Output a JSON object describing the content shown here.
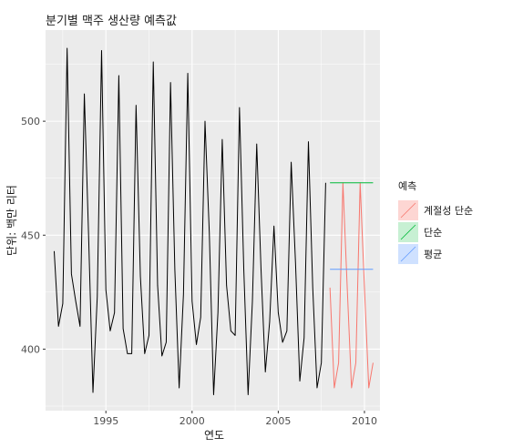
{
  "chart_data": {
    "type": "line",
    "title": "분기별 맥주 생산량 예측값",
    "xlabel": "연도",
    "ylabel": "단위: 백만 리터",
    "xlim": [
      1991.5,
      2010.9
    ],
    "ylim": [
      373,
      540
    ],
    "x_ticks": [
      1995,
      2000,
      2005,
      2010
    ],
    "x_tick_labels": [
      "1995",
      "2000",
      "2005",
      "2010"
    ],
    "y_ticks": [
      400,
      450,
      500
    ],
    "y_tick_labels": [
      "400",
      "450",
      "500"
    ],
    "grid": true,
    "legend": {
      "title": "예측",
      "position": "right",
      "entries": [
        {
          "label": "계절성 단순",
          "color": "#F8766D"
        },
        {
          "label": "단순",
          "color": "#00BA38"
        },
        {
          "label": "평균",
          "color": "#619CFF"
        }
      ]
    },
    "series": [
      {
        "kind": "observed",
        "color": "#000000",
        "x": [
          1992.0,
          1992.25,
          1992.5,
          1992.75,
          1993.0,
          1993.25,
          1993.5,
          1993.75,
          1994.0,
          1994.25,
          1994.5,
          1994.75,
          1995.0,
          1995.25,
          1995.5,
          1995.75,
          1996.0,
          1996.25,
          1996.5,
          1996.75,
          1997.0,
          1997.25,
          1997.5,
          1997.75,
          1998.0,
          1998.25,
          1998.5,
          1998.75,
          1999.0,
          1999.25,
          1999.5,
          1999.75,
          2000.0,
          2000.25,
          2000.5,
          2000.75,
          2001.0,
          2001.25,
          2001.5,
          2001.75,
          2002.0,
          2002.25,
          2002.5,
          2002.75,
          2003.0,
          2003.25,
          2003.5,
          2003.75,
          2004.0,
          2004.25,
          2004.5,
          2004.75,
          2005.0,
          2005.25,
          2005.5,
          2005.75,
          2006.0,
          2006.25,
          2006.5,
          2006.75,
          2007.0,
          2007.25,
          2007.5,
          2007.75
        ],
        "y": [
          443,
          410,
          420,
          532,
          433,
          421,
          410,
          512,
          449,
          381,
          423,
          531,
          426,
          408,
          416,
          520,
          409,
          398,
          398,
          507,
          432,
          398,
          406,
          526,
          428,
          397,
          403,
          517,
          435,
          383,
          424,
          521,
          421,
          402,
          414,
          500,
          451,
          380,
          416,
          492,
          428,
          408,
          406,
          506,
          435,
          380,
          421,
          490,
          435,
          390,
          412,
          454,
          416,
          403,
          408,
          482,
          438,
          386,
          405,
          491,
          427,
          383,
          394,
          473
        ]
      },
      {
        "kind": "forecast",
        "name": "계절성 단순",
        "color": "#F8766D",
        "x": [
          2008.0,
          2008.25,
          2008.5,
          2008.75,
          2009.0,
          2009.25,
          2009.5,
          2009.75,
          2010.0,
          2010.25,
          2010.5
        ],
        "y": [
          427,
          383,
          394,
          473,
          427,
          383,
          394,
          473,
          427,
          383,
          394
        ]
      },
      {
        "kind": "forecast",
        "name": "단순",
        "color": "#00BA38",
        "x": [
          2008.0,
          2010.5
        ],
        "y": [
          473,
          473
        ]
      },
      {
        "kind": "forecast",
        "name": "평균",
        "color": "#619CFF",
        "x": [
          2008.0,
          2010.5
        ],
        "y": [
          435,
          435
        ]
      }
    ]
  }
}
